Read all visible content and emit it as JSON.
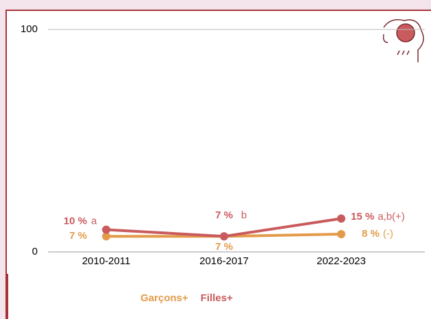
{
  "chart_data": {
    "type": "line",
    "categories": [
      "2010-2011",
      "2016-2017",
      "2022-2023"
    ],
    "series": [
      {
        "name": "Garçons+",
        "color": "#e39b4a",
        "values": [
          7,
          7,
          8
        ],
        "value_labels": [
          "7 %",
          "7 %",
          "8 %"
        ],
        "notes": [
          null,
          null,
          "(-)"
        ]
      },
      {
        "name": "Filles+",
        "color": "#c95b5e",
        "values": [
          10,
          7,
          15
        ],
        "value_labels": [
          "10 %",
          "7 %",
          "15 %"
        ],
        "notes": [
          "a",
          "b",
          "a,b(+)"
        ]
      }
    ],
    "ylim": [
      0,
      100
    ],
    "yticks": [
      0,
      100
    ],
    "grid": true
  }
}
